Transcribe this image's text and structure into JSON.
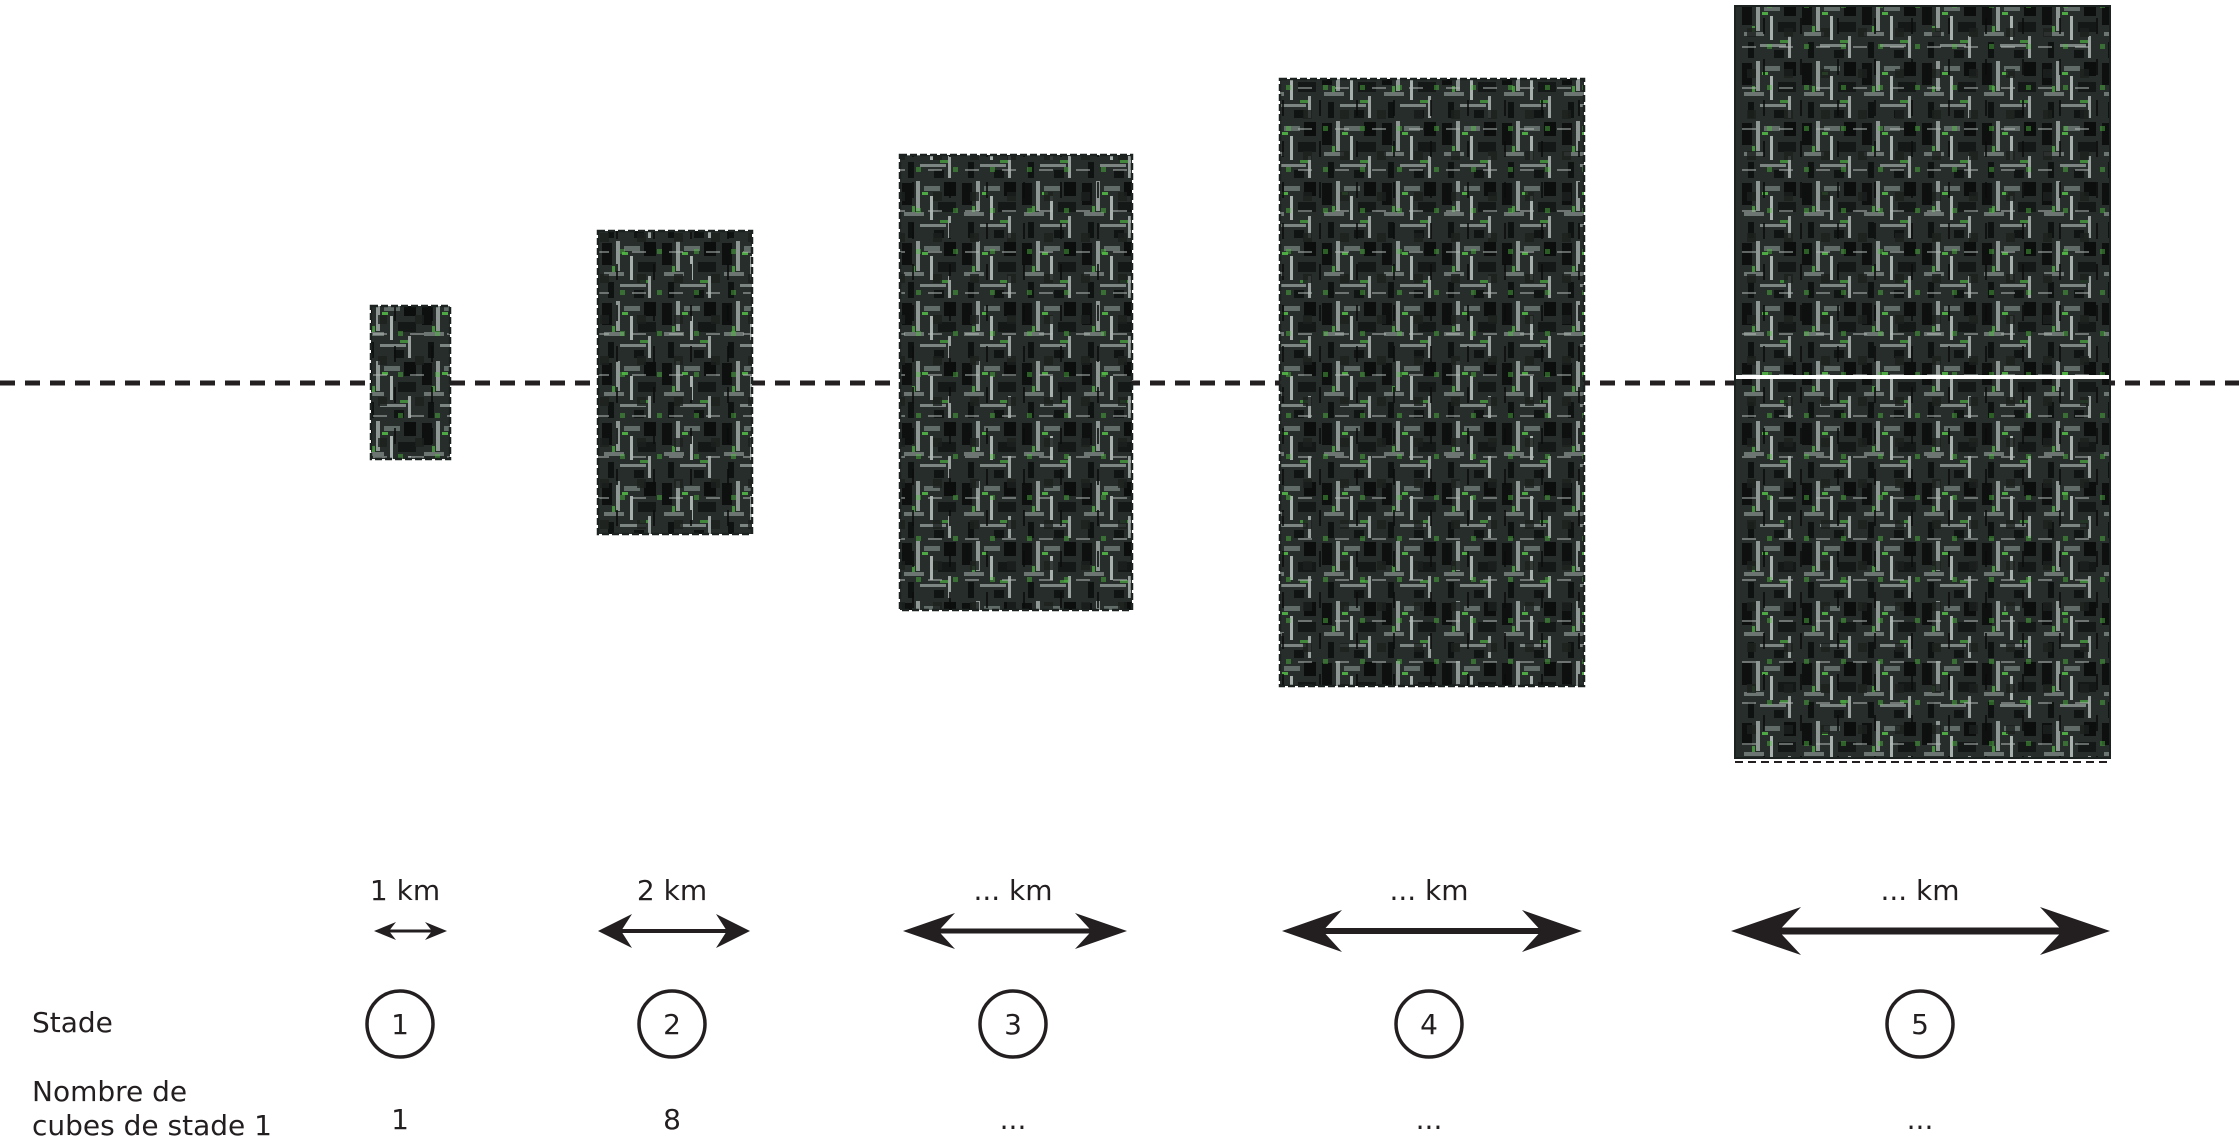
{
  "stages": [
    {
      "number": "1",
      "width_label": "1 km",
      "count": "1"
    },
    {
      "number": "2",
      "width_label": "2 km",
      "count": "8"
    },
    {
      "number": "3",
      "width_label": "... km",
      "count": "..."
    },
    {
      "number": "4",
      "width_label": "... km",
      "count": "..."
    },
    {
      "number": "5",
      "width_label": "... km",
      "count": "..."
    }
  ],
  "row_labels": {
    "stade": "Stade",
    "count_line1": "Nombre de",
    "count_line2": "cubes de stade 1"
  },
  "colors": {
    "ink": "#231f20",
    "metal_dark": "#141816",
    "metal_mid": "#56605c",
    "metal_light": "#9aa39f",
    "glow": "#5bd14a"
  }
}
